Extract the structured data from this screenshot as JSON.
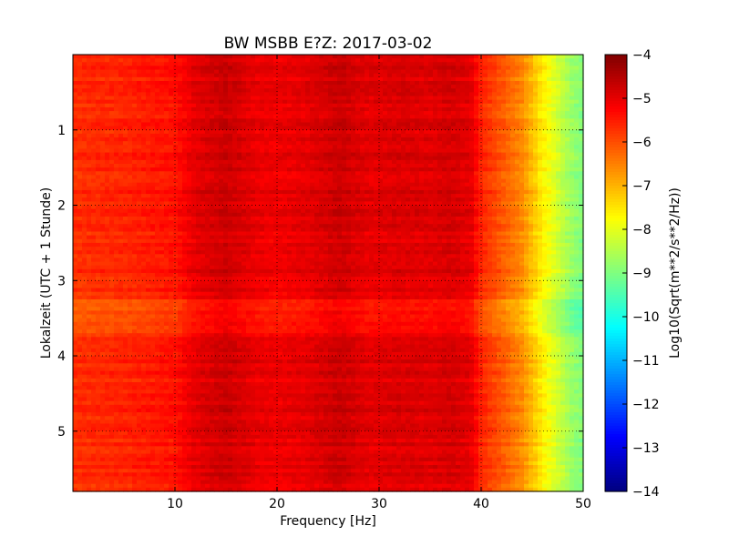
{
  "chart_data": {
    "type": "heatmap",
    "title": "BW MSBB E?Z: 2017-03-02",
    "xlabel": "Frequency [Hz]",
    "ylabel": "Lokalzeit (UTC + 1 Stunde)",
    "xlim": [
      0,
      50
    ],
    "ylim": [
      0,
      5.8
    ],
    "y_inverted": true,
    "xticks": [
      "10",
      "20",
      "30",
      "40",
      "50"
    ],
    "yticks": [
      "1",
      "2",
      "3",
      "4",
      "5"
    ],
    "grid": true,
    "colorbar": {
      "label": "Log10(Sqrt(m**2/s**2/Hz))",
      "range": [
        -14,
        -4
      ],
      "ticks": [
        "-4",
        "-5",
        "-6",
        "-7",
        "-8",
        "-9",
        "-10",
        "-11",
        "-12",
        "-13",
        "-14"
      ],
      "colormap": "jet"
    },
    "spectrum_profile": {
      "frequency_hz": [
        0,
        5,
        10,
        12,
        15,
        18,
        20,
        23,
        26,
        29,
        32,
        35,
        37,
        39,
        40,
        42,
        44,
        45,
        46,
        47,
        48,
        49,
        50
      ],
      "log10_amplitude": [
        -5.7,
        -5.6,
        -5.4,
        -5.0,
        -4.75,
        -5.05,
        -5.1,
        -5.0,
        -4.75,
        -5.0,
        -4.9,
        -4.95,
        -4.85,
        -5.0,
        -5.6,
        -6.1,
        -6.6,
        -7.1,
        -7.6,
        -8.0,
        -8.4,
        -8.8,
        -9.0
      ]
    },
    "quiet_band": {
      "time_h": [
        3.25,
        3.7
      ],
      "offset": -0.45
    }
  }
}
